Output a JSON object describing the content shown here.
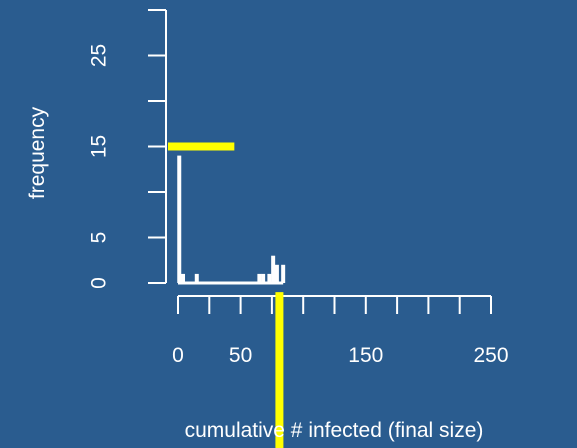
{
  "colors": {
    "background": "#2a5c8f",
    "foreground": "#ffffff",
    "highlight": "#ffff00"
  },
  "chart_data": {
    "type": "bar",
    "xlabel": "cumulative # infected (final size)",
    "ylabel": "frequency",
    "x_ticks": [
      0,
      25,
      50,
      75,
      100,
      125,
      150,
      175,
      200,
      225,
      250
    ],
    "x_tick_labels": [
      "0",
      "50",
      "150",
      "250"
    ],
    "x_tick_label_values": [
      0,
      50,
      150,
      250
    ],
    "y_ticks": [
      0,
      5,
      10,
      15,
      20,
      25,
      30
    ],
    "y_tick_labels": [
      "0",
      "5",
      "15",
      "25"
    ],
    "y_tick_label_values": [
      0,
      5,
      15,
      25
    ],
    "xlim": [
      0,
      250
    ],
    "ylim": [
      0,
      30
    ],
    "bars": [
      {
        "x": 1,
        "y": 14
      },
      {
        "x": 4,
        "y": 1
      },
      {
        "x": 15,
        "y": 1
      },
      {
        "x": 65,
        "y": 1
      },
      {
        "x": 68,
        "y": 1
      },
      {
        "x": 73,
        "y": 1
      },
      {
        "x": 76,
        "y": 3
      },
      {
        "x": 79,
        "y": 2
      },
      {
        "x": 84,
        "y": 2
      }
    ],
    "baseline": {
      "x_start": 0,
      "x_end": 84,
      "y": 0
    },
    "highlight_horizontal": {
      "y": 15,
      "x_start": -8,
      "x_end": 45
    },
    "highlight_vertical": {
      "x": 81,
      "y_start": -1,
      "y_end": -31
    }
  }
}
